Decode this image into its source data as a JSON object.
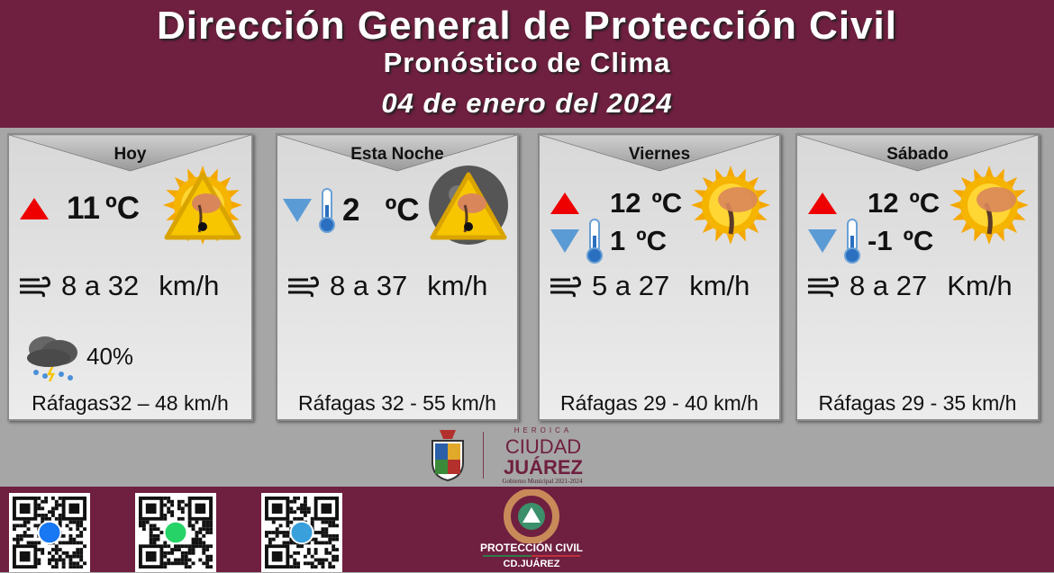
{
  "header": {
    "title": "Dirección General de Protección Civil",
    "subtitle": "Pronóstico de Clima",
    "date": "04 de enero del 2024"
  },
  "colors": {
    "maroon": "#6f1f3f",
    "grey": "#a6a6a6",
    "high": "#e00000",
    "low": "#5b9bd5",
    "sun": "#f5a800"
  },
  "cards": [
    {
      "title": "Hoy",
      "high": "11",
      "unit": "ºC",
      "icon": "sun-wind-warning-icon",
      "wind": "8 a 32",
      "wind_unit": "km/h",
      "rain": "40%",
      "rain_icon": "storm-cloud-icon",
      "gusts": "Ráfagas32 – 48 km/h"
    },
    {
      "title": "Esta Noche",
      "low": "2",
      "unit": "ºC",
      "icon": "moon-wind-warning-icon",
      "wind": "8 a 37",
      "wind_unit": "km/h",
      "gusts": "Ráfagas 32 - 55 km/h"
    },
    {
      "title": "Viernes",
      "high": "12",
      "low": "1",
      "unit": "ºC",
      "icon": "sun-wind-tree-icon",
      "wind": "5 a 27",
      "wind_unit": "km/h",
      "gusts": "Ráfagas 29 - 40 km/h"
    },
    {
      "title": "Sábado",
      "high": "12",
      "low": "-1",
      "unit": "ºC",
      "icon": "sun-wind-tree-icon",
      "wind": "8 a 27",
      "wind_unit": "Km/h",
      "gusts": "Ráfagas 29 - 35 km/h"
    }
  ],
  "footer": {
    "city_logo": {
      "line1": "HEROICA",
      "line2": "CIUDAD",
      "line3": "JUÁREZ",
      "line4": "Gobierno Municipal 2021-2024"
    },
    "pc_logo": {
      "line1": "PROTECCIÓN CIVIL",
      "line2": "CD.JUÁREZ"
    },
    "qr_codes": [
      "facebook-icon",
      "whatsapp-icon",
      "telegram-icon"
    ]
  }
}
